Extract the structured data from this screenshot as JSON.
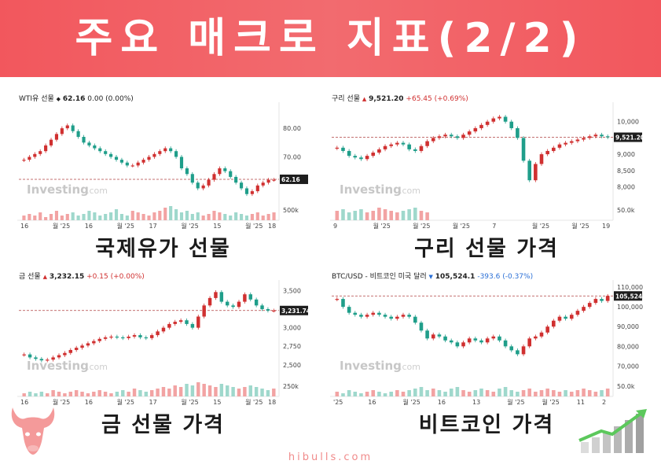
{
  "banner": {
    "title": "주요 매크로 지표(2/2)"
  },
  "footer": {
    "site": "hibulls.com"
  },
  "watermark": {
    "brand": "Investing",
    "suffix": ".com"
  },
  "colors": {
    "banner": "#f2575d",
    "up": "#d03030",
    "down": "#1f9e8a",
    "ref_line": "#b04040"
  },
  "chart_data": [
    {
      "type": "candlestick",
      "caption": "국제유가 선물",
      "header": {
        "name": "WTI유 선물",
        "arrow": "◆",
        "price": "62.16",
        "change": "0.00",
        "change_pct": "(0.00%)",
        "direction": "flat"
      },
      "last_label": "62.16",
      "ref_value": 62.16,
      "ylim": [
        55,
        88
      ],
      "yticks": [
        {
          "v": 80,
          "t": "80.00"
        },
        {
          "v": 70,
          "t": "70.00"
        }
      ],
      "volume_tick": "500k",
      "xticks": [
        "16",
        "월 '25",
        "16",
        "월 '25",
        "17",
        "월 '25",
        "15",
        "월 '25",
        "18"
      ],
      "path": [
        69,
        70,
        71,
        72,
        74,
        76,
        78,
        80,
        81,
        79,
        77,
        75,
        74,
        73,
        72,
        71,
        70,
        69,
        68,
        67,
        67,
        68,
        69,
        70,
        71,
        72,
        73,
        72,
        70,
        66,
        64,
        61,
        59,
        60,
        62,
        64,
        66,
        65,
        63,
        61,
        59,
        57,
        58,
        60,
        61,
        62,
        62
      ],
      "volumes": [
        3,
        4,
        3,
        5,
        2,
        4,
        6,
        3,
        4,
        5,
        3,
        4,
        6,
        5,
        3,
        4,
        5,
        7,
        4,
        3,
        6,
        5,
        4,
        3,
        5,
        6,
        8,
        9,
        7,
        5,
        6,
        4,
        5,
        3,
        4,
        6,
        5,
        4,
        3,
        5,
        4,
        3,
        4,
        5,
        3,
        4,
        5
      ]
    },
    {
      "type": "candlestick",
      "caption": "구리 선물 가격",
      "header": {
        "name": "구리 선물",
        "arrow": "▲",
        "price": "9,521.20",
        "change": "+65.45",
        "change_pct": "(+0.69%)",
        "direction": "up"
      },
      "last_label": "9,521.20",
      "ref_value": 9521.2,
      "ylim": [
        7600,
        10500
      ],
      "yticks": [
        {
          "v": 10000,
          "t": "10,000"
        },
        {
          "v": 9000,
          "t": "9,000"
        },
        {
          "v": 8500,
          "t": "8,500"
        },
        {
          "v": 8000,
          "t": "8,000"
        }
      ],
      "volume_tick": "50.0k",
      "xticks": [
        "9",
        "월 '25",
        "월 '25",
        "월 '25",
        "7",
        "월 '25",
        "월 '25",
        "19"
      ],
      "path": [
        9200,
        9100,
        8950,
        8900,
        8850,
        8950,
        9050,
        9150,
        9250,
        9300,
        9350,
        9300,
        9150,
        9100,
        9250,
        9400,
        9500,
        9550,
        9600,
        9550,
        9500,
        9600,
        9700,
        9800,
        9900,
        10000,
        10100,
        10150,
        10000,
        9800,
        9500,
        8800,
        8200,
        8700,
        9000,
        9100,
        9200,
        9300,
        9350,
        9400,
        9450,
        9500,
        9550,
        9600,
        9550,
        9521
      ],
      "volumes": [
        6,
        7,
        5,
        6,
        7,
        5,
        6,
        8,
        7,
        6,
        5,
        6,
        7,
        8,
        6,
        5,
        0,
        0,
        0,
        0,
        0,
        0,
        0,
        0,
        0,
        0,
        0,
        0,
        0,
        0,
        0,
        0,
        0,
        0,
        0,
        0,
        0,
        0,
        0,
        0,
        0,
        0,
        0,
        0,
        0,
        0
      ]
    },
    {
      "type": "candlestick",
      "caption": "금 선물 가격",
      "header": {
        "name": "금 선물",
        "arrow": "▲",
        "price": "3,232.15",
        "change": "+0.15",
        "change_pct": "(+0.00%)",
        "direction": "up"
      },
      "last_label": "3,231.74",
      "ref_value": 3231.74,
      "ylim": [
        2350,
        3600
      ],
      "yticks": [
        {
          "v": 3500,
          "t": "3,500"
        },
        {
          "v": 3000,
          "t": "3,000"
        },
        {
          "v": 2750,
          "t": "2,750"
        },
        {
          "v": 2500,
          "t": "2,500"
        }
      ],
      "volume_tick": "250k",
      "xticks": [
        "16",
        "월 '25",
        "16",
        "월 '25",
        "17",
        "월 '25",
        "15",
        "월 '25",
        "18"
      ],
      "path": [
        2640,
        2600,
        2580,
        2560,
        2570,
        2600,
        2630,
        2660,
        2700,
        2730,
        2760,
        2790,
        2820,
        2850,
        2870,
        2880,
        2870,
        2860,
        2880,
        2900,
        2870,
        2860,
        2900,
        2950,
        3000,
        3050,
        3080,
        3100,
        3050,
        3000,
        3150,
        3300,
        3400,
        3480,
        3350,
        3300,
        3280,
        3350,
        3450,
        3380,
        3300,
        3250,
        3230,
        3231
      ],
      "volumes": [
        2,
        3,
        2,
        3,
        2,
        4,
        3,
        2,
        3,
        4,
        3,
        2,
        3,
        4,
        3,
        2,
        3,
        4,
        3,
        5,
        4,
        3,
        4,
        5,
        6,
        5,
        7,
        6,
        8,
        7,
        9,
        8,
        7,
        6,
        8,
        7,
        6,
        5,
        6,
        7,
        6,
        5,
        4,
        5
      ]
    },
    {
      "type": "candlestick",
      "caption": "비트코인 가격",
      "header": {
        "name": "BTC/USD - 비트코인 미국 달러",
        "arrow": "▼",
        "price": "105,524.1",
        "change": "-393.6",
        "change_pct": "(-0.37%)",
        "direction": "down"
      },
      "last_label": "105,524.1",
      "ref_value": 105524.1,
      "ylim": [
        65000,
        112000
      ],
      "yticks": [
        {
          "v": 110000,
          "t": "110,000"
        },
        {
          "v": 100000,
          "t": "100,000"
        },
        {
          "v": 90000,
          "t": "90,000"
        },
        {
          "v": 80000,
          "t": "80,000"
        },
        {
          "v": 70000,
          "t": "70,000"
        }
      ],
      "volume_tick": "50.0k",
      "xticks": [
        "'25",
        "16",
        "월 '25",
        "16",
        "13",
        "월 '25",
        "월 '25",
        "11",
        "2"
      ],
      "path": [
        104000,
        100000,
        97000,
        96000,
        95000,
        96000,
        97000,
        96000,
        95000,
        94000,
        95000,
        96000,
        95000,
        92000,
        88000,
        84000,
        86000,
        85000,
        83000,
        82000,
        80000,
        82000,
        84000,
        83000,
        82000,
        84000,
        85000,
        83000,
        80000,
        78000,
        76000,
        80000,
        84000,
        85000,
        87000,
        90000,
        93000,
        95000,
        94000,
        96000,
        98000,
        100000,
        102000,
        104000,
        103000,
        105524
      ],
      "volumes": [
        3,
        2,
        4,
        3,
        2,
        3,
        4,
        3,
        2,
        3,
        4,
        3,
        4,
        5,
        6,
        4,
        5,
        4,
        3,
        5,
        6,
        4,
        3,
        4,
        5,
        4,
        3,
        5,
        6,
        4,
        3,
        4,
        5,
        3,
        4,
        5,
        4,
        3,
        4,
        3,
        4,
        5,
        4,
        3,
        4,
        5
      ]
    }
  ]
}
